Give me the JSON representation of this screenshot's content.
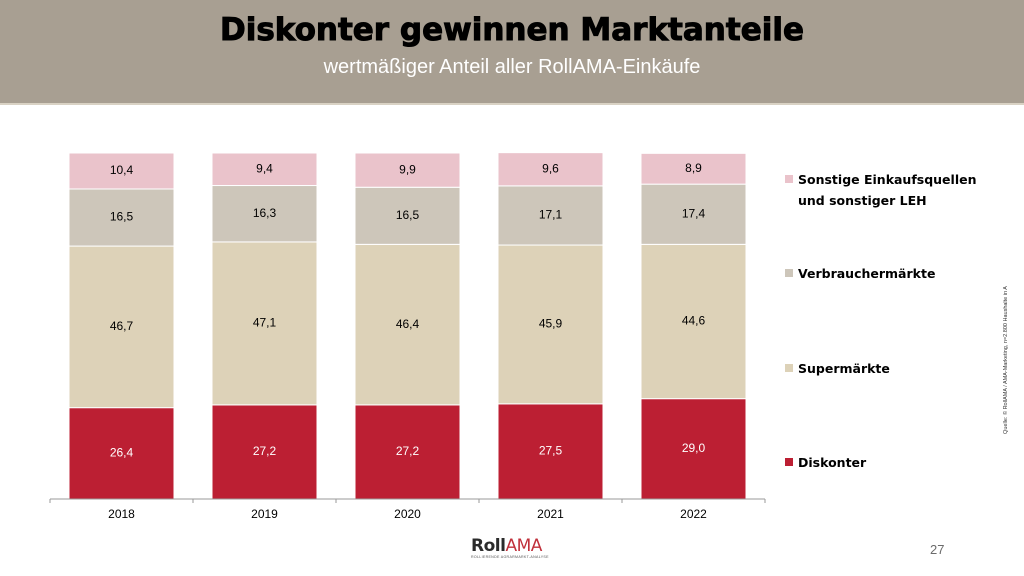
{
  "header": {
    "title": "Diskonter gewinnen Marktanteile",
    "subtitle": "wertmäßiger Anteil aller RollAMA-Einkäufe",
    "background_color": "#a89f92"
  },
  "chart_data": {
    "type": "bar",
    "stacked": true,
    "title": "Diskonter gewinnen Marktanteile",
    "subtitle": "wertmäßiger Anteil aller RollAMA-Einkäufe",
    "xlabel": "",
    "ylabel": "",
    "ylim": [
      0,
      100
    ],
    "grid": false,
    "legend_position": "right",
    "categories": [
      "2018",
      "2019",
      "2020",
      "2021",
      "2022"
    ],
    "series": [
      {
        "name": "Diskonter",
        "color": "#bc1f33",
        "label_color": "#ffffff",
        "values": [
          26.4,
          27.2,
          27.2,
          27.5,
          29.0
        ],
        "labels": [
          "26,4",
          "27,2",
          "27,2",
          "27,5",
          "29,0"
        ]
      },
      {
        "name": "Supermärkte",
        "color": "#ddd2b8",
        "label_color": "#000000",
        "values": [
          46.7,
          47.1,
          46.4,
          45.9,
          44.6
        ],
        "labels": [
          "46,7",
          "47,1",
          "46,4",
          "45,9",
          "44,6"
        ]
      },
      {
        "name": "Verbrauchermärkte",
        "color": "#cdc6ba",
        "label_color": "#000000",
        "values": [
          16.5,
          16.3,
          16.5,
          17.1,
          17.4
        ],
        "labels": [
          "16,5",
          "16,3",
          "16,5",
          "17,1",
          "17,4"
        ]
      },
      {
        "name": "Sonstige Einkaufsquellen und sonstiger LEH",
        "color": "#eac3cb",
        "label_color": "#000000",
        "values": [
          10.4,
          9.4,
          9.9,
          9.6,
          8.9
        ],
        "labels": [
          "10,4",
          "9,4",
          "9,9",
          "9,6",
          "8,9"
        ]
      }
    ]
  },
  "legend": {
    "items": [
      {
        "label": "Sonstige Einkaufsquellen und sonstiger LEH",
        "color": "#eac3cb"
      },
      {
        "label": "Verbrauchermärkte",
        "color": "#cdc6ba"
      },
      {
        "label": "Supermärkte",
        "color": "#ddd2b8"
      },
      {
        "label": "Diskonter",
        "color": "#bc1f33"
      }
    ]
  },
  "footer": {
    "source": "Quelle: © RollAMA / AMA-Marketing, n=2.800 Haushalte in A",
    "logo_part1": "Roll",
    "logo_part2": "AMA",
    "logo_tagline": "ROLLIERENDE AGRARMARKT-ANALYSE",
    "page_number": "27"
  }
}
